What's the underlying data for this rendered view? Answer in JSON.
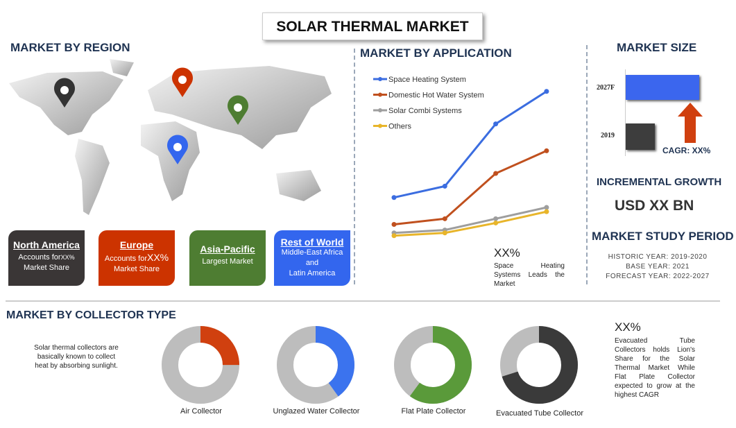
{
  "title": "SOLAR THERMAL MARKET",
  "region": {
    "heading": "MARKET BY REGION",
    "cards": [
      {
        "name": "North America",
        "line1": "Accounts for",
        "value": "XX%",
        "line2": "Market Share",
        "color": "#3a3636"
      },
      {
        "name": "Europe",
        "line1": "Accounts for",
        "value": "XX%",
        "line2": "Market Share",
        "color": "#cc3300"
      },
      {
        "name": "Asia-Pacific",
        "line1": "Largest Market",
        "color": "#4e7d32"
      },
      {
        "name": "Rest of World",
        "line1": "Middle-East Africa",
        "line2": "and",
        "line3": "Latin America",
        "color": "#3366ee"
      }
    ]
  },
  "application": {
    "heading": "MARKET BY  APPLICATION",
    "stat": "XX%",
    "note": "Space Heating Systems Leads the Market"
  },
  "chart_data": [
    {
      "type": "line",
      "title": "MARKET BY  APPLICATION",
      "x": [
        1,
        2,
        3,
        4
      ],
      "legend": "top-left",
      "series": [
        {
          "name": "Space Heating System",
          "color": "#3b6de0",
          "values": [
            32,
            40,
            84,
            107
          ]
        },
        {
          "name": "Domestic Hot Water System",
          "color": "#c0501e",
          "values": [
            13,
            17,
            49,
            65
          ]
        },
        {
          "name": "Solar Combi Systems",
          "color": "#9e9e9e",
          "values": [
            7,
            9,
            17,
            25
          ]
        },
        {
          "name": "Others",
          "color": "#e8b52a",
          "values": [
            5,
            7,
            14,
            22
          ]
        }
      ],
      "ylim": [
        0,
        120
      ]
    },
    {
      "type": "bar",
      "title": "MARKET SIZE",
      "categories": [
        "2027F",
        "2019"
      ],
      "values": [
        100,
        40
      ]
    },
    {
      "type": "pie",
      "title": "MARKET BY COLLECTOR TYPE",
      "categories": [
        "Air Collector",
        "Unglazed Water Collector",
        "Flat Plate Collector",
        "Evacuated Tube Collector"
      ],
      "values": [
        25,
        40,
        60,
        70
      ],
      "colors": [
        "#d0400f",
        "#3b73ee",
        "#5a9a3a",
        "#3a3a3a"
      ]
    }
  ],
  "size": {
    "heading": "MARKET SIZE",
    "cagr": "CAGR: XX%",
    "growth_heading": "INCREMENTAL GROWTH",
    "growth_value": "USD XX BN",
    "study_heading": "MARKET STUDY PERIOD",
    "historic": "HISTORIC YEAR: 2019-2020",
    "base": "BASE YEAR: 2021",
    "forecast": "FORECAST YEAR: 2022-2027"
  },
  "collector": {
    "heading": "MARKET BY COLLECTOR TYPE",
    "intro": "Solar thermal collectors are basically known to collect heat by absorbing sunlight.",
    "stat": "XX%",
    "note": "Evacuated Tube Collectors holds Lion's Share for the Solar Thermal Market While Flat Plate Collector expected to grow at the highest CAGR"
  }
}
